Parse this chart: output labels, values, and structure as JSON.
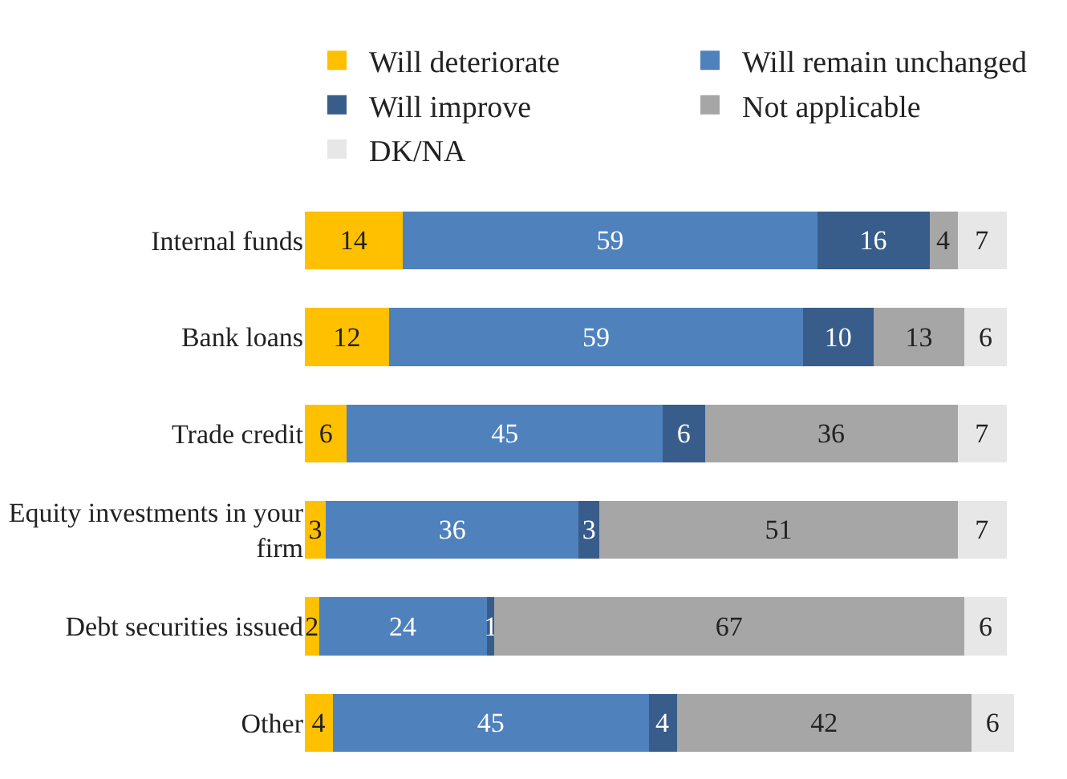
{
  "chart_data": {
    "type": "bar",
    "orientation": "horizontal",
    "stacked": true,
    "data_labels": true,
    "legend": "top",
    "tick_labels": "y",
    "categories": [
      "Internal funds",
      "Bank loans",
      "Trade credit",
      "Equity investments in your firm",
      "Debt securities issued",
      "Other"
    ],
    "series": [
      {
        "name": "Will deteriorate",
        "color": "#ffc000",
        "values": [
          14,
          12,
          6,
          3,
          2,
          4
        ]
      },
      {
        "name": "Will remain unchanged",
        "color": "#4f81bd",
        "values": [
          59,
          59,
          45,
          36,
          24,
          45
        ]
      },
      {
        "name": "Will improve",
        "color": "#385d8a",
        "values": [
          16,
          10,
          6,
          3,
          1,
          4
        ]
      },
      {
        "name": "Not applicable",
        "color": "#a6a6a6",
        "values": [
          4,
          13,
          36,
          51,
          67,
          42
        ]
      },
      {
        "name": "DK/NA",
        "color": "#e7e7e7",
        "values": [
          7,
          6,
          7,
          7,
          6,
          6
        ]
      }
    ]
  }
}
